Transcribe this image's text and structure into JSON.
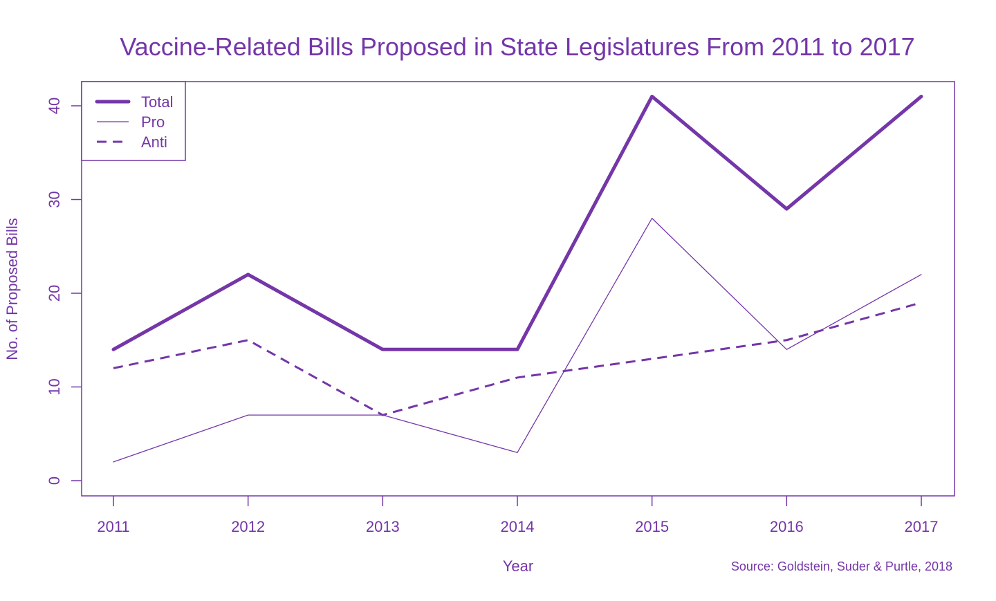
{
  "chart_data": {
    "type": "line",
    "title": "Vaccine-Related Bills Proposed in State Legislatures From 2011 to 2017",
    "xlabel": "Year",
    "ylabel": "No. of Proposed Bills",
    "source": "Source: Goldstein, Suder & Purtle, 2018",
    "x": [
      2011,
      2012,
      2013,
      2014,
      2015,
      2016,
      2017
    ],
    "x_tick_labels": [
      "2011",
      "2012",
      "2013",
      "2014",
      "2015",
      "2016",
      "2017"
    ],
    "y_ticks": [
      0,
      10,
      20,
      30,
      40
    ],
    "y_tick_labels": [
      "0",
      "10",
      "20",
      "30",
      "40"
    ],
    "ylim": [
      -1.6,
      42.6
    ],
    "grid": false,
    "legend_position": "top-left",
    "color": "#7436a8",
    "series": [
      {
        "name": "Total",
        "style": "thick-solid",
        "values": [
          14,
          22,
          14,
          14,
          41,
          29,
          41
        ]
      },
      {
        "name": "Pro",
        "style": "thin-solid",
        "values": [
          2,
          7,
          7,
          3,
          28,
          14,
          22
        ]
      },
      {
        "name": "Anti",
        "style": "dashed",
        "values": [
          12,
          15,
          7,
          11,
          13,
          15,
          19
        ]
      }
    ]
  }
}
